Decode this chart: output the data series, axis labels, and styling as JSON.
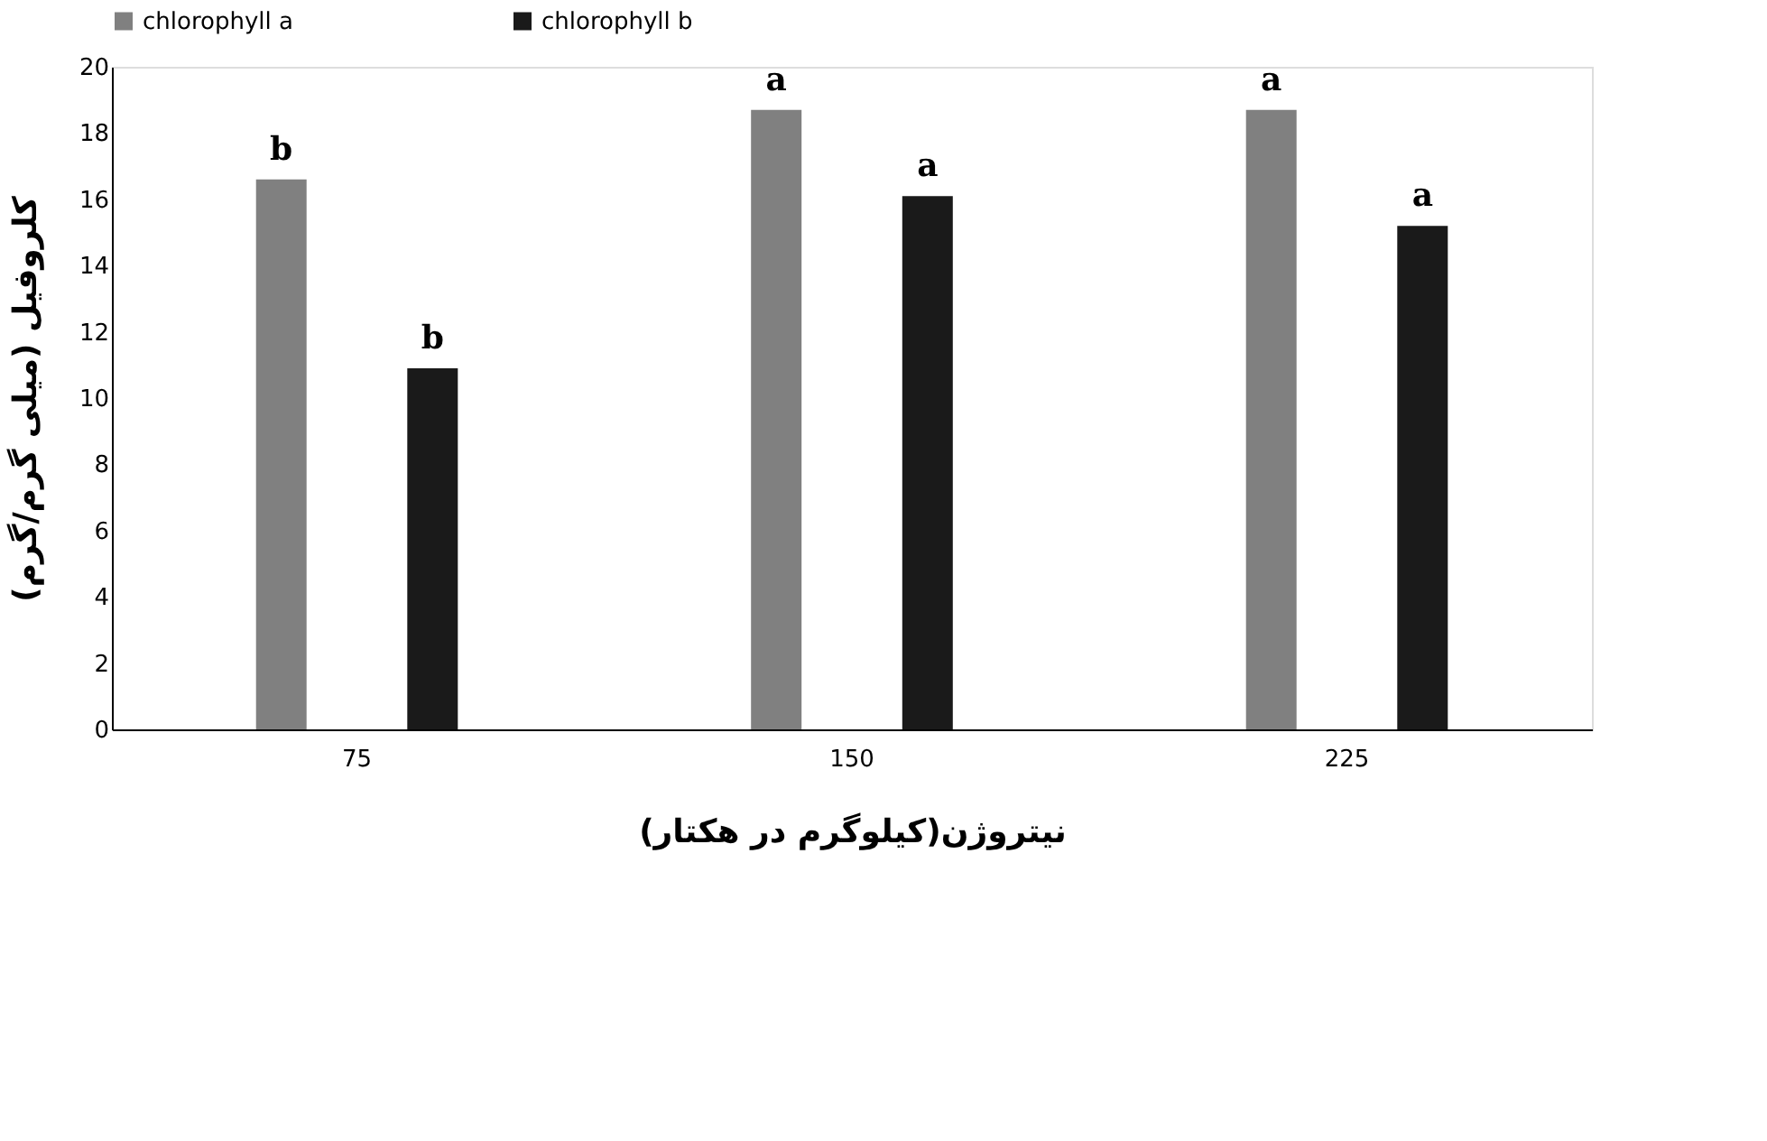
{
  "chart_data": {
    "type": "bar",
    "xlabel": "نیتروژن(کیلوگرم در هکتار)",
    "ylabel": "کلروفیل (میلی گرم/گرم)",
    "categories": [
      "75",
      "150",
      "225"
    ],
    "series": [
      {
        "name": "chlorophyll a",
        "color": "#808080",
        "values": [
          16.6,
          18.7,
          18.7
        ],
        "value_labels": [
          "b",
          "a",
          "a"
        ]
      },
      {
        "name": "chlorophyll b",
        "color": "#1a1a1a",
        "values": [
          10.9,
          16.1,
          15.2
        ],
        "value_labels": [
          "b",
          "a",
          "a"
        ]
      }
    ],
    "ylim": [
      0,
      20
    ],
    "yticks": [
      0,
      2,
      4,
      6,
      8,
      10,
      12,
      14,
      16,
      18,
      20
    ],
    "grid": false,
    "legend": "top"
  }
}
